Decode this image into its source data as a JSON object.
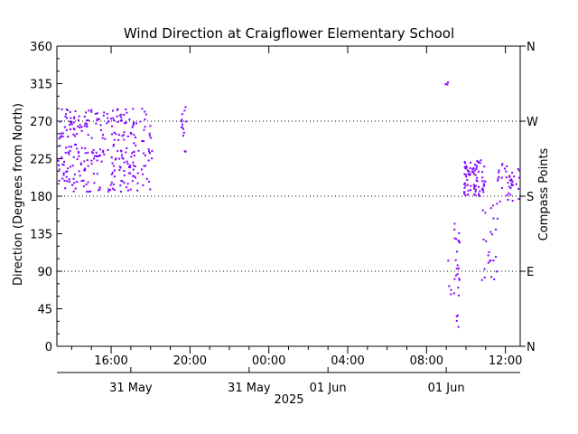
{
  "chart_data": {
    "type": "scatter",
    "title": "Wind Direction at Craigflower Elementary School",
    "ylabel": "Direction (Degrees from North)",
    "ylabel_right": "Compass Points",
    "ylim": [
      0,
      360
    ],
    "xlim_hours": [
      13.25,
      36.75
    ],
    "y_ticks": [
      "0",
      "45",
      "90",
      "135",
      "180",
      "225",
      "270",
      "315",
      "360"
    ],
    "compass_ticks": [
      {
        "label": "N",
        "value": 0
      },
      {
        "label": "E",
        "value": 90
      },
      {
        "label": "S",
        "value": 180
      },
      {
        "label": "W",
        "value": 270
      },
      {
        "label": "N",
        "value": 360
      }
    ],
    "reference_lines": [
      90,
      180,
      270
    ],
    "x_time_ticks": [
      {
        "label": "16:00",
        "hour": 16
      },
      {
        "label": "20:00",
        "hour": 20
      },
      {
        "label": "00:00",
        "hour": 24
      },
      {
        "label": "04:00",
        "hour": 28
      },
      {
        "label": "08:00",
        "hour": 32
      },
      {
        "label": "12:00",
        "hour": 36
      }
    ],
    "x_date_ticks": [
      {
        "label": "31 May",
        "hour": 17
      },
      {
        "label": "31 May",
        "hour": 23
      },
      {
        "label": "01 Jun",
        "hour": 27
      },
      {
        "label": "01 Jun",
        "hour": 33
      }
    ],
    "x_year": "2025",
    "marker_color": "#7f00ff",
    "clusters": [
      {
        "x": [
          13.3,
          18.1
        ],
        "y": [
          185,
          285
        ],
        "n": 280
      },
      {
        "x": [
          13.3,
          14.2
        ],
        "y": [
          195,
          285
        ],
        "n": 30
      },
      {
        "x": [
          19.55,
          19.8
        ],
        "y": [
          230,
          292
        ],
        "n": 14
      },
      {
        "x": [
          32.9,
          33.1
        ],
        "y": [
          312,
          318
        ],
        "n": 4
      },
      {
        "x": [
          33.1,
          33.7
        ],
        "y": [
          60,
          150
        ],
        "n": 25
      },
      {
        "x": [
          33.5,
          33.8
        ],
        "y": [
          20,
          40
        ],
        "n": 4
      },
      {
        "x": [
          33.9,
          35.0
        ],
        "y": [
          180,
          225
        ],
        "n": 80
      },
      {
        "x": [
          34.8,
          35.6
        ],
        "y": [
          75,
          175
        ],
        "n": 25
      },
      {
        "x": [
          35.6,
          36.75
        ],
        "y": [
          172,
          220
        ],
        "n": 40
      }
    ]
  }
}
